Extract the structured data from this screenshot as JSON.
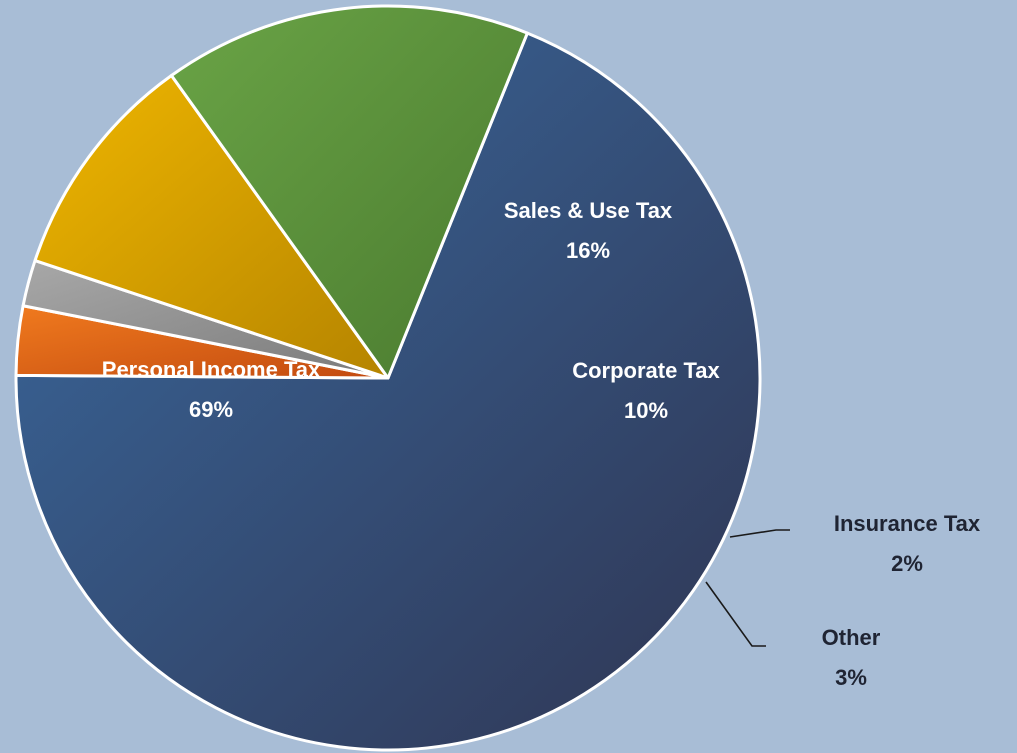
{
  "chart_data": {
    "type": "pie",
    "title": "",
    "legend": "none",
    "slices": [
      {
        "label": "Personal Income Tax",
        "value": 69,
        "value_label": "69%",
        "color_light": "#3a6aa0",
        "color_dark": "#2f3552",
        "label_color": "#ffffff"
      },
      {
        "label": "Other",
        "value": 3,
        "value_label": "3%",
        "color_light": "#f07a1e",
        "color_dark": "#c24a10",
        "label_color": "#1f2433"
      },
      {
        "label": "Insurance Tax",
        "value": 2,
        "value_label": "2%",
        "color_light": "#a8a8a8",
        "color_dark": "#7a7a7a",
        "label_color": "#1f2433"
      },
      {
        "label": "Corporate Tax",
        "value": 10,
        "value_label": "10%",
        "color_light": "#efb600",
        "color_dark": "#b58400",
        "label_color": "#ffffff"
      },
      {
        "label": "Sales & Use Tax",
        "value": 16,
        "value_label": "16%",
        "color_light": "#6aa446",
        "color_dark": "#4a7a2f",
        "label_color": "#ffffff"
      }
    ]
  },
  "colors": {
    "background": "#a8bdd6",
    "slice_border": "#ffffff"
  }
}
